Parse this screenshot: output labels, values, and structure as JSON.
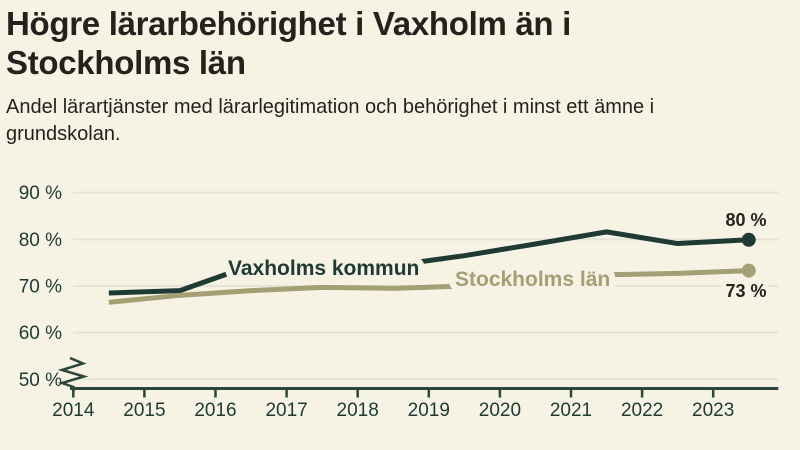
{
  "page": {
    "background": "#f6f3e5"
  },
  "header": {
    "title_lines": [
      "Högre lärarbehörighet i Vaxholm än i",
      "Stockholms län"
    ],
    "subtitle_lines": [
      "Andel lärartjänster med lärarlegitimation och behörighet i minst ett ämne i",
      "grundskolan."
    ]
  },
  "chart_data": {
    "type": "line",
    "title": "Högre lärarbehörighet i Vaxholm än i Stockholms län",
    "subtitle": "Andel lärartjänster med lärarlegitimation och behörighet i minst ett ämne i grundskolan.",
    "x": [
      2014.5,
      2015.5,
      2016.5,
      2017.5,
      2018.5,
      2019.5,
      2020.5,
      2021.5,
      2022.5,
      2023.5
    ],
    "series": [
      {
        "name": "Vaxholms kommun",
        "color": "#1e3a33",
        "values": [
          68.5,
          69,
          74.4,
          74.3,
          74.4,
          76.5,
          79,
          81.6,
          79.1,
          79.9
        ],
        "end_label": "80 %"
      },
      {
        "name": "Stockholms län",
        "color": "#a59f74",
        "values": [
          66.5,
          68,
          69,
          69.7,
          69.5,
          70,
          71,
          72.4,
          72.7,
          73.3
        ],
        "end_label": "73 %"
      }
    ],
    "x_axis": {
      "ticks": [
        {
          "value": 2014,
          "label": "2014"
        },
        {
          "value": 2015,
          "label": "2015"
        },
        {
          "value": 2016,
          "label": "2016"
        },
        {
          "value": 2017,
          "label": "2017"
        },
        {
          "value": 2018,
          "label": "2018"
        },
        {
          "value": 2019,
          "label": "2019"
        },
        {
          "value": 2020,
          "label": "2020"
        },
        {
          "value": 2021,
          "label": "2021"
        },
        {
          "value": 2022,
          "label": "2022"
        },
        {
          "value": 2023,
          "label": "2023"
        }
      ]
    },
    "y_axis": {
      "ticks": [
        {
          "value": 90,
          "label": "90 %"
        },
        {
          "value": 80,
          "label": "80 %"
        },
        {
          "value": 70,
          "label": "70 %"
        },
        {
          "value": 60,
          "label": "60 %"
        },
        {
          "value": 50,
          "label": "50 %"
        }
      ],
      "axis_break": true
    },
    "ylim": [
      50,
      90
    ],
    "grid": "horizontal",
    "legend_position": "inline-on-line",
    "colors": {
      "background": "#f6f3e5",
      "grid": "#e6e3d6",
      "axis": "#2b463c",
      "text": "#1e3a33",
      "value_label": "#25231e"
    }
  }
}
